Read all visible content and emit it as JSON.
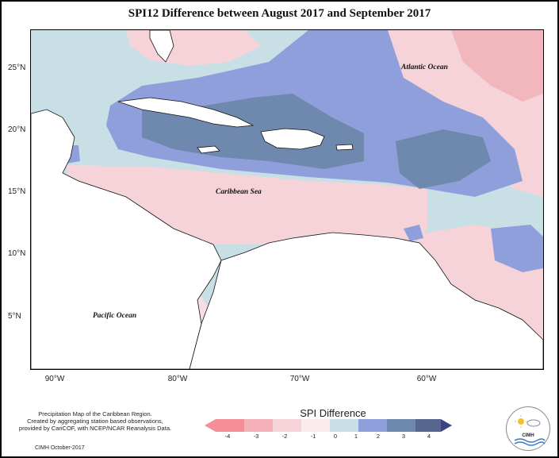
{
  "title": "SPI12 Difference between August 2017 and September 2017",
  "map": {
    "y_axis_labels": [
      "25°N",
      "20°N",
      "15°N",
      "10°N",
      "5°N"
    ],
    "x_axis_labels": [
      "90°W",
      "80°W",
      "70°W",
      "60°W"
    ],
    "labels": {
      "atlantic": "Atlantic Ocean",
      "caribbean": "Caribbean Sea",
      "pacific": "Pacific Ocean"
    }
  },
  "legend": {
    "title": "SPI Difference",
    "ticks": [
      "-4",
      "-3",
      "-2",
      "-1",
      "0",
      "1",
      "2",
      "3",
      "4"
    ],
    "colors": [
      "#f58e96",
      "#f4b1b8",
      "#f5d3d8",
      "#fbeaec",
      "#c9dfe6",
      "#8f9fdb",
      "#6f88ad",
      "#56668d",
      "#3b4480"
    ]
  },
  "credits": [
    "Precipitation Map of the Caribbean Region.",
    "Created by aggregating station based observations,",
    "provided by CariCOF, with NCEP/NCAR Reanalysis Data."
  ],
  "footer": "CIMH October-2017",
  "logo_text": "CIMH"
}
